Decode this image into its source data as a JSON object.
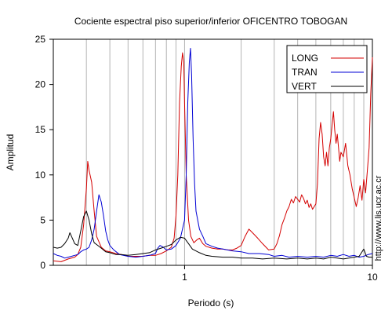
{
  "chart_data": {
    "type": "line",
    "title": "Cociente espectral piso superior/inferior OFICENTRO TOBOGAN",
    "xlabel": "Periodo (s)",
    "ylabel": "Amplitud",
    "x_scale": "log",
    "xlim": [
      0.2,
      10
    ],
    "ylim": [
      0,
      25
    ],
    "x_ticks": [
      1,
      10
    ],
    "y_ticks": [
      0,
      5,
      10,
      15,
      20,
      25
    ],
    "grid": "vertical",
    "legend_position": "top-right",
    "side_note": "http://www.lis.ucr.ac.cr",
    "series": [
      {
        "name": "LONG",
        "color": "#d40000",
        "points": [
          [
            0.2,
            0.5
          ],
          [
            0.22,
            0.4
          ],
          [
            0.24,
            0.7
          ],
          [
            0.26,
            0.9
          ],
          [
            0.27,
            1.2
          ],
          [
            0.28,
            2.0
          ],
          [
            0.29,
            4.5
          ],
          [
            0.3,
            8.5
          ],
          [
            0.305,
            11.5
          ],
          [
            0.31,
            10.5
          ],
          [
            0.32,
            9.2
          ],
          [
            0.33,
            6.0
          ],
          [
            0.34,
            3.2
          ],
          [
            0.36,
            2.0
          ],
          [
            0.38,
            1.6
          ],
          [
            0.4,
            1.5
          ],
          [
            0.43,
            1.3
          ],
          [
            0.46,
            1.2
          ],
          [
            0.5,
            1.0
          ],
          [
            0.55,
            1.0
          ],
          [
            0.6,
            1.0
          ],
          [
            0.65,
            1.1
          ],
          [
            0.7,
            1.1
          ],
          [
            0.75,
            1.3
          ],
          [
            0.8,
            1.6
          ],
          [
            0.85,
            2.0
          ],
          [
            0.88,
            3.0
          ],
          [
            0.9,
            5.5
          ],
          [
            0.92,
            10.0
          ],
          [
            0.94,
            18.0
          ],
          [
            0.96,
            22.0
          ],
          [
            0.975,
            23.5
          ],
          [
            0.99,
            22.5
          ],
          [
            1.0,
            18.0
          ],
          [
            1.02,
            10.0
          ],
          [
            1.05,
            5.0
          ],
          [
            1.08,
            3.2
          ],
          [
            1.12,
            2.5
          ],
          [
            1.16,
            2.8
          ],
          [
            1.2,
            3.0
          ],
          [
            1.25,
            2.4
          ],
          [
            1.3,
            2.1
          ],
          [
            1.4,
            1.9
          ],
          [
            1.5,
            1.8
          ],
          [
            1.6,
            1.8
          ],
          [
            1.7,
            1.7
          ],
          [
            1.8,
            1.7
          ],
          [
            1.9,
            1.9
          ],
          [
            2.0,
            2.2
          ],
          [
            2.1,
            3.2
          ],
          [
            2.2,
            4.0
          ],
          [
            2.3,
            3.6
          ],
          [
            2.45,
            3.0
          ],
          [
            2.6,
            2.4
          ],
          [
            2.8,
            1.7
          ],
          [
            3.0,
            1.8
          ],
          [
            3.1,
            2.4
          ],
          [
            3.2,
            3.3
          ],
          [
            3.3,
            4.5
          ],
          [
            3.4,
            5.2
          ],
          [
            3.5,
            6.0
          ],
          [
            3.6,
            6.5
          ],
          [
            3.7,
            7.3
          ],
          [
            3.8,
            6.9
          ],
          [
            3.9,
            7.6
          ],
          [
            4.0,
            7.3
          ],
          [
            4.1,
            7.0
          ],
          [
            4.2,
            7.8
          ],
          [
            4.3,
            7.4
          ],
          [
            4.4,
            6.8
          ],
          [
            4.5,
            7.2
          ],
          [
            4.6,
            6.4
          ],
          [
            4.7,
            6.8
          ],
          [
            4.8,
            6.2
          ],
          [
            4.9,
            6.5
          ],
          [
            5.0,
            6.8
          ],
          [
            5.1,
            9.0
          ],
          [
            5.2,
            14.0
          ],
          [
            5.3,
            15.8
          ],
          [
            5.4,
            14.5
          ],
          [
            5.5,
            12.0
          ],
          [
            5.6,
            11.0
          ],
          [
            5.7,
            12.5
          ],
          [
            5.8,
            11.0
          ],
          [
            5.9,
            13.0
          ],
          [
            6.0,
            14.0
          ],
          [
            6.1,
            15.5
          ],
          [
            6.2,
            17.0
          ],
          [
            6.3,
            15.0
          ],
          [
            6.4,
            13.5
          ],
          [
            6.5,
            14.5
          ],
          [
            6.6,
            13.0
          ],
          [
            6.7,
            11.5
          ],
          [
            6.8,
            12.5
          ],
          [
            7.0,
            12.0
          ],
          [
            7.2,
            13.5
          ],
          [
            7.4,
            11.0
          ],
          [
            7.6,
            10.0
          ],
          [
            7.8,
            8.5
          ],
          [
            8.0,
            7.5
          ],
          [
            8.2,
            6.5
          ],
          [
            8.4,
            7.5
          ],
          [
            8.6,
            8.8
          ],
          [
            8.8,
            7.2
          ],
          [
            9.0,
            9.5
          ],
          [
            9.2,
            8.0
          ],
          [
            9.4,
            10.5
          ],
          [
            9.6,
            13.0
          ],
          [
            9.8,
            19.0
          ],
          [
            10.0,
            23.0
          ]
        ]
      },
      {
        "name": "TRAN",
        "color": "#0000d4",
        "points": [
          [
            0.2,
            1.3
          ],
          [
            0.21,
            1.1
          ],
          [
            0.22,
            1.0
          ],
          [
            0.23,
            0.8
          ],
          [
            0.24,
            0.9
          ],
          [
            0.25,
            1.0
          ],
          [
            0.26,
            1.1
          ],
          [
            0.27,
            1.2
          ],
          [
            0.28,
            1.5
          ],
          [
            0.29,
            1.7
          ],
          [
            0.3,
            1.8
          ],
          [
            0.31,
            2.0
          ],
          [
            0.32,
            2.8
          ],
          [
            0.33,
            4.0
          ],
          [
            0.34,
            6.0
          ],
          [
            0.35,
            7.8
          ],
          [
            0.36,
            7.0
          ],
          [
            0.37,
            5.5
          ],
          [
            0.38,
            3.8
          ],
          [
            0.39,
            2.8
          ],
          [
            0.4,
            2.2
          ],
          [
            0.42,
            1.7
          ],
          [
            0.45,
            1.2
          ],
          [
            0.5,
            1.0
          ],
          [
            0.55,
            0.9
          ],
          [
            0.6,
            1.0
          ],
          [
            0.65,
            1.1
          ],
          [
            0.7,
            1.3
          ],
          [
            0.72,
            1.9
          ],
          [
            0.74,
            2.2
          ],
          [
            0.77,
            2.0
          ],
          [
            0.8,
            1.7
          ],
          [
            0.85,
            1.8
          ],
          [
            0.9,
            2.2
          ],
          [
            0.95,
            3.0
          ],
          [
            1.0,
            5.0
          ],
          [
            1.02,
            10.0
          ],
          [
            1.04,
            18.0
          ],
          [
            1.06,
            22.5
          ],
          [
            1.075,
            24.0
          ],
          [
            1.09,
            21.0
          ],
          [
            1.11,
            14.0
          ],
          [
            1.13,
            9.0
          ],
          [
            1.15,
            6.0
          ],
          [
            1.2,
            4.0
          ],
          [
            1.25,
            3.2
          ],
          [
            1.3,
            2.4
          ],
          [
            1.4,
            2.1
          ],
          [
            1.5,
            1.9
          ],
          [
            1.6,
            1.8
          ],
          [
            1.8,
            1.6
          ],
          [
            2.0,
            1.5
          ],
          [
            2.2,
            1.3
          ],
          [
            2.5,
            1.3
          ],
          [
            2.8,
            1.2
          ],
          [
            3.0,
            1.0
          ],
          [
            3.3,
            1.1
          ],
          [
            3.6,
            0.9
          ],
          [
            4.0,
            1.0
          ],
          [
            4.5,
            0.9
          ],
          [
            5.0,
            1.0
          ],
          [
            5.5,
            0.9
          ],
          [
            6.0,
            1.1
          ],
          [
            6.5,
            1.0
          ],
          [
            7.0,
            1.2
          ],
          [
            7.5,
            1.0
          ],
          [
            8.0,
            1.1
          ],
          [
            8.5,
            0.9
          ],
          [
            9.0,
            1.0
          ],
          [
            9.5,
            1.2
          ],
          [
            10.0,
            1.3
          ]
        ]
      },
      {
        "name": "VERT",
        "color": "#000000",
        "points": [
          [
            0.2,
            2.0
          ],
          [
            0.21,
            1.9
          ],
          [
            0.22,
            2.0
          ],
          [
            0.23,
            2.4
          ],
          [
            0.24,
            3.0
          ],
          [
            0.245,
            3.6
          ],
          [
            0.25,
            3.2
          ],
          [
            0.26,
            2.4
          ],
          [
            0.27,
            2.2
          ],
          [
            0.28,
            3.8
          ],
          [
            0.29,
            5.4
          ],
          [
            0.3,
            6.0
          ],
          [
            0.31,
            5.0
          ],
          [
            0.32,
            3.5
          ],
          [
            0.33,
            2.5
          ],
          [
            0.34,
            2.3
          ],
          [
            0.36,
            1.9
          ],
          [
            0.38,
            1.5
          ],
          [
            0.4,
            1.4
          ],
          [
            0.43,
            1.2
          ],
          [
            0.46,
            1.2
          ],
          [
            0.5,
            1.1
          ],
          [
            0.55,
            1.2
          ],
          [
            0.6,
            1.3
          ],
          [
            0.65,
            1.4
          ],
          [
            0.7,
            1.7
          ],
          [
            0.75,
            1.9
          ],
          [
            0.8,
            2.1
          ],
          [
            0.85,
            2.3
          ],
          [
            0.9,
            2.8
          ],
          [
            0.95,
            3.1
          ],
          [
            1.0,
            3.0
          ],
          [
            1.05,
            2.4
          ],
          [
            1.1,
            1.8
          ],
          [
            1.2,
            1.4
          ],
          [
            1.3,
            1.1
          ],
          [
            1.4,
            1.0
          ],
          [
            1.6,
            0.9
          ],
          [
            1.8,
            0.9
          ],
          [
            2.0,
            0.8
          ],
          [
            2.3,
            0.8
          ],
          [
            2.6,
            0.7
          ],
          [
            3.0,
            0.8
          ],
          [
            3.5,
            0.7
          ],
          [
            4.0,
            0.8
          ],
          [
            4.5,
            0.7
          ],
          [
            5.0,
            0.8
          ],
          [
            5.5,
            0.7
          ],
          [
            6.0,
            0.9
          ],
          [
            6.5,
            0.8
          ],
          [
            7.0,
            0.7
          ],
          [
            7.5,
            0.8
          ],
          [
            8.0,
            0.9
          ],
          [
            8.5,
            1.0
          ],
          [
            9.0,
            1.8
          ],
          [
            9.3,
            1.0
          ],
          [
            9.6,
            0.9
          ],
          [
            10.0,
            0.9
          ]
        ]
      }
    ]
  }
}
